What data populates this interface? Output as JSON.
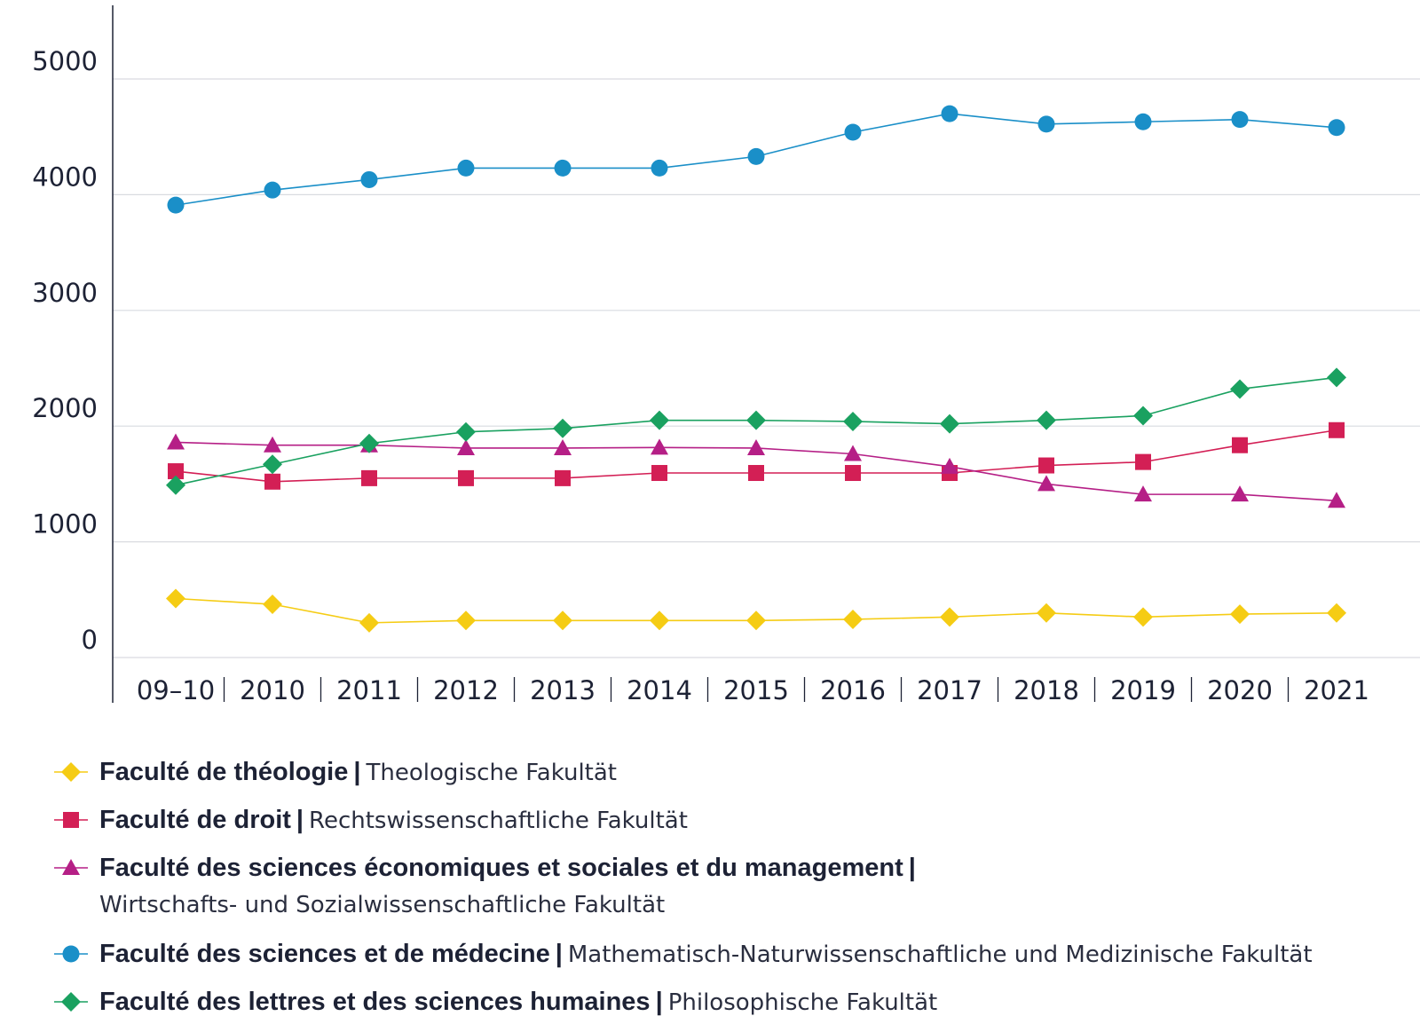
{
  "chart_data": {
    "type": "line",
    "categories": [
      "09–10",
      "2010",
      "2011",
      "2012",
      "2013",
      "2014",
      "2015",
      "2016",
      "2017",
      "2018",
      "2019",
      "2020",
      "2021"
    ],
    "y_ticks": [
      "0",
      "1000",
      "2000",
      "3000",
      "4000",
      "5000"
    ],
    "ylim": [
      0,
      5600
    ],
    "grid": true,
    "legend_position": "bottom",
    "series": [
      {
        "name": "Faculté de théologie",
        "name_separator": "|",
        "name_de": "Theologische Fakultät",
        "color": "#f5cc14",
        "marker": "diamond",
        "values": [
          510,
          460,
          300,
          320,
          320,
          320,
          320,
          330,
          350,
          385,
          350,
          375,
          385
        ]
      },
      {
        "name": "Faculté de droit",
        "name_separator": "|",
        "name_de": "Rechtswissenschaftliche Fakultät",
        "color": "#d31f55",
        "marker": "square",
        "values": [
          1610,
          1520,
          1550,
          1550,
          1550,
          1595,
          1595,
          1595,
          1595,
          1660,
          1690,
          1835,
          1965
        ]
      },
      {
        "name": "Faculté des sciences économiques et sociales et du management",
        "name_separator": "|",
        "name_de": "Wirtschafts- und Sozialwissenschaftliche Fakultät",
        "color": "#b51f86",
        "marker": "triangle",
        "values": [
          1860,
          1835,
          1835,
          1810,
          1810,
          1815,
          1810,
          1760,
          1650,
          1500,
          1410,
          1410,
          1355
        ]
      },
      {
        "name": "Faculté des sciences et de médecine",
        "name_separator": "|",
        "name_de": "Mathematisch-Naturwissenschaftliche und Medizinische Fakultät",
        "color": "#1a8fc8",
        "marker": "circle",
        "values": [
          3910,
          4040,
          4130,
          4230,
          4230,
          4230,
          4330,
          4540,
          4700,
          4610,
          4630,
          4650,
          4580
        ]
      },
      {
        "name": "Faculté des lettres et des sciences humaines",
        "name_separator": "|",
        "name_de": "Philosophische Fakultät",
        "color": "#1aa160",
        "marker": "diamond",
        "values": [
          1490,
          1670,
          1850,
          1950,
          1980,
          2050,
          2050,
          2040,
          2020,
          2050,
          2090,
          2320,
          2420
        ]
      }
    ]
  }
}
